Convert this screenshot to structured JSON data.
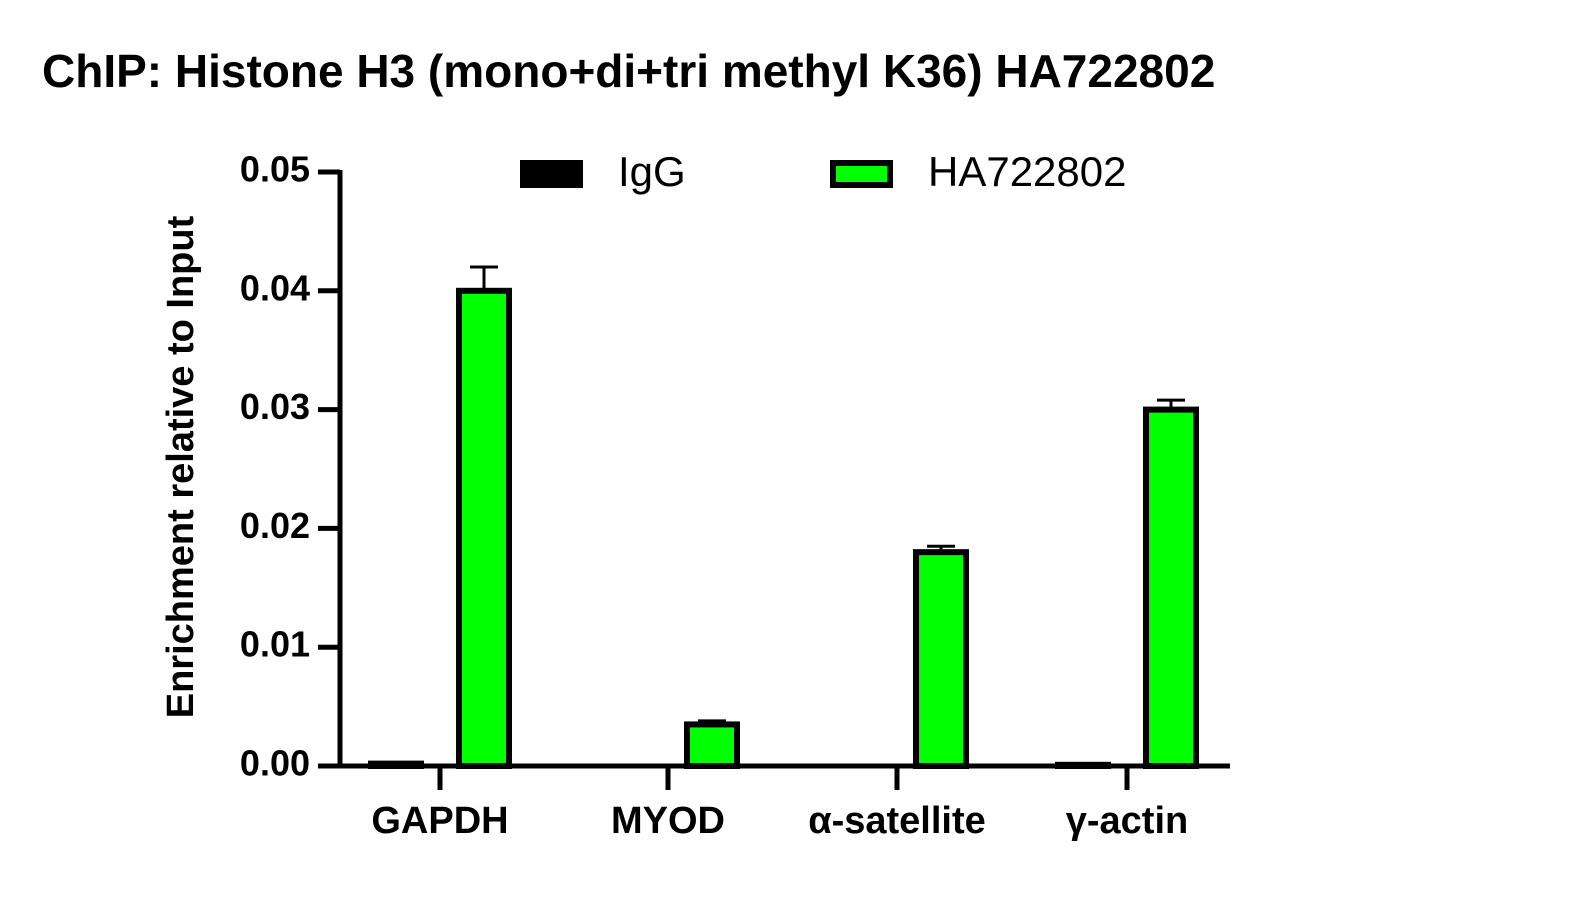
{
  "chart_data": {
    "type": "bar",
    "title": "ChIP: Histone H3 (mono+di+tri methyl K36) HA722802",
    "y_label": "Enrichment relative to Input",
    "categories": [
      "GAPDH",
      "MYOD",
      "α-satellite",
      "γ-actin"
    ],
    "series": [
      {
        "name": "IgG",
        "color": "#000000",
        "values": [
          0.0002,
          0,
          0,
          0.0001
        ]
      },
      {
        "name": "HA722802",
        "color": "#00ff00",
        "values": [
          0.04,
          0.0035,
          0.018,
          0.03
        ],
        "errors": [
          0.002,
          0.0003,
          0.0005,
          0.0008
        ]
      }
    ],
    "ylim": [
      0,
      0.05
    ],
    "yticks": [
      {
        "value": 0,
        "label": "0.00"
      },
      {
        "value": 0.01,
        "label": "0.01"
      },
      {
        "value": 0.02,
        "label": "0.02"
      },
      {
        "value": 0.03,
        "label": "0.03"
      },
      {
        "value": 0.04,
        "label": "0.04"
      },
      {
        "value": 0.05,
        "label": "0.05"
      }
    ],
    "legend": "top"
  }
}
